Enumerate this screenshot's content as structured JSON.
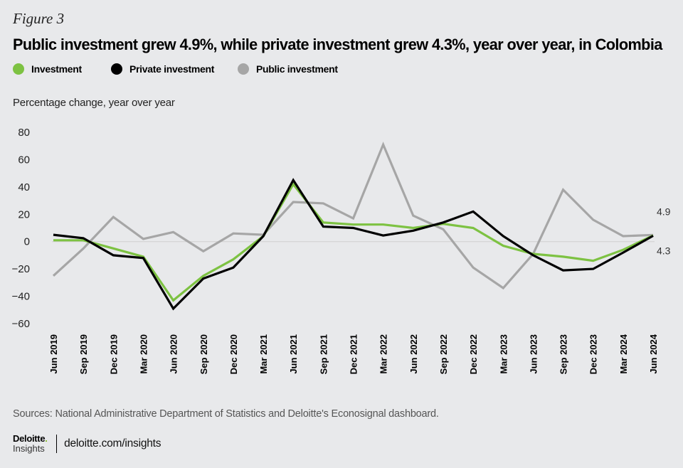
{
  "figure_label": "Figure 3",
  "colors": {
    "investment": "#7dc242",
    "private": "#000000",
    "public": "#a6a6a6",
    "zero_line": "#cfcfcf",
    "background": "#e8e9eb"
  },
  "footer": {
    "source": "Sources: National Administrative Department of Statistics and Deloitte's Econosignal dashboard.",
    "logo_main": "Deloitte",
    "logo_dot": ".",
    "logo_sub": "Insights",
    "url": "deloitte.com/insights"
  },
  "chart_data": {
    "type": "line",
    "title": "Public investment grew 4.9%, while private investment grew 4.3%, year over year, in Colombia",
    "ylabel": "Percentage change, year over year",
    "xlabel": "",
    "ylim": [
      -60,
      80
    ],
    "yticks": [
      80,
      60,
      40,
      20,
      0,
      -20,
      -40,
      -60
    ],
    "ytick_labels": [
      "80",
      "60",
      "40",
      "20",
      "0",
      "−20",
      "−40",
      "−60"
    ],
    "grid": false,
    "zero_line": true,
    "legend_position": "top-left",
    "x": [
      "Jun 2019",
      "Sep 2019",
      "Dec 2019",
      "Mar 2020",
      "Jun 2020",
      "Sep 2020",
      "Dec 2020",
      "Mar 2021",
      "Jun 2021",
      "Sep 2021",
      "Dec 2021",
      "Mar 2022",
      "Jun 2022",
      "Sep 2022",
      "Dec 2022",
      "Mar 2023",
      "Jun 2023",
      "Sep 2023",
      "Dec 2023",
      "Mar 2024",
      "Jun 2024"
    ],
    "series": [
      {
        "name": "Investment",
        "key": "investment",
        "values": [
          1,
          1,
          -5,
          -11,
          -43,
          -25,
          -13,
          4,
          42,
          14,
          12.5,
          12.5,
          10,
          13,
          10,
          -3,
          -9,
          -11,
          -14,
          -6,
          4.5
        ]
      },
      {
        "name": "Private investment",
        "key": "private",
        "values": [
          5,
          2.5,
          -10,
          -12,
          -49,
          -27,
          -19,
          4,
          45,
          11,
          10,
          4.5,
          8,
          14,
          22,
          4,
          -10,
          -21,
          -20,
          -8,
          4.3
        ]
      },
      {
        "name": "Public investment",
        "key": "public",
        "values": [
          -25,
          -5,
          18,
          2,
          7,
          -7,
          6,
          5,
          29,
          28,
          17,
          71,
          19,
          9,
          -19,
          -34,
          -9,
          38,
          16,
          4,
          4.9
        ]
      }
    ],
    "end_labels": [
      {
        "series": "Public investment",
        "text": "4.9",
        "value": 4.9
      },
      {
        "series": "Private investment",
        "text": "4.3",
        "value": 4.3
      }
    ]
  }
}
